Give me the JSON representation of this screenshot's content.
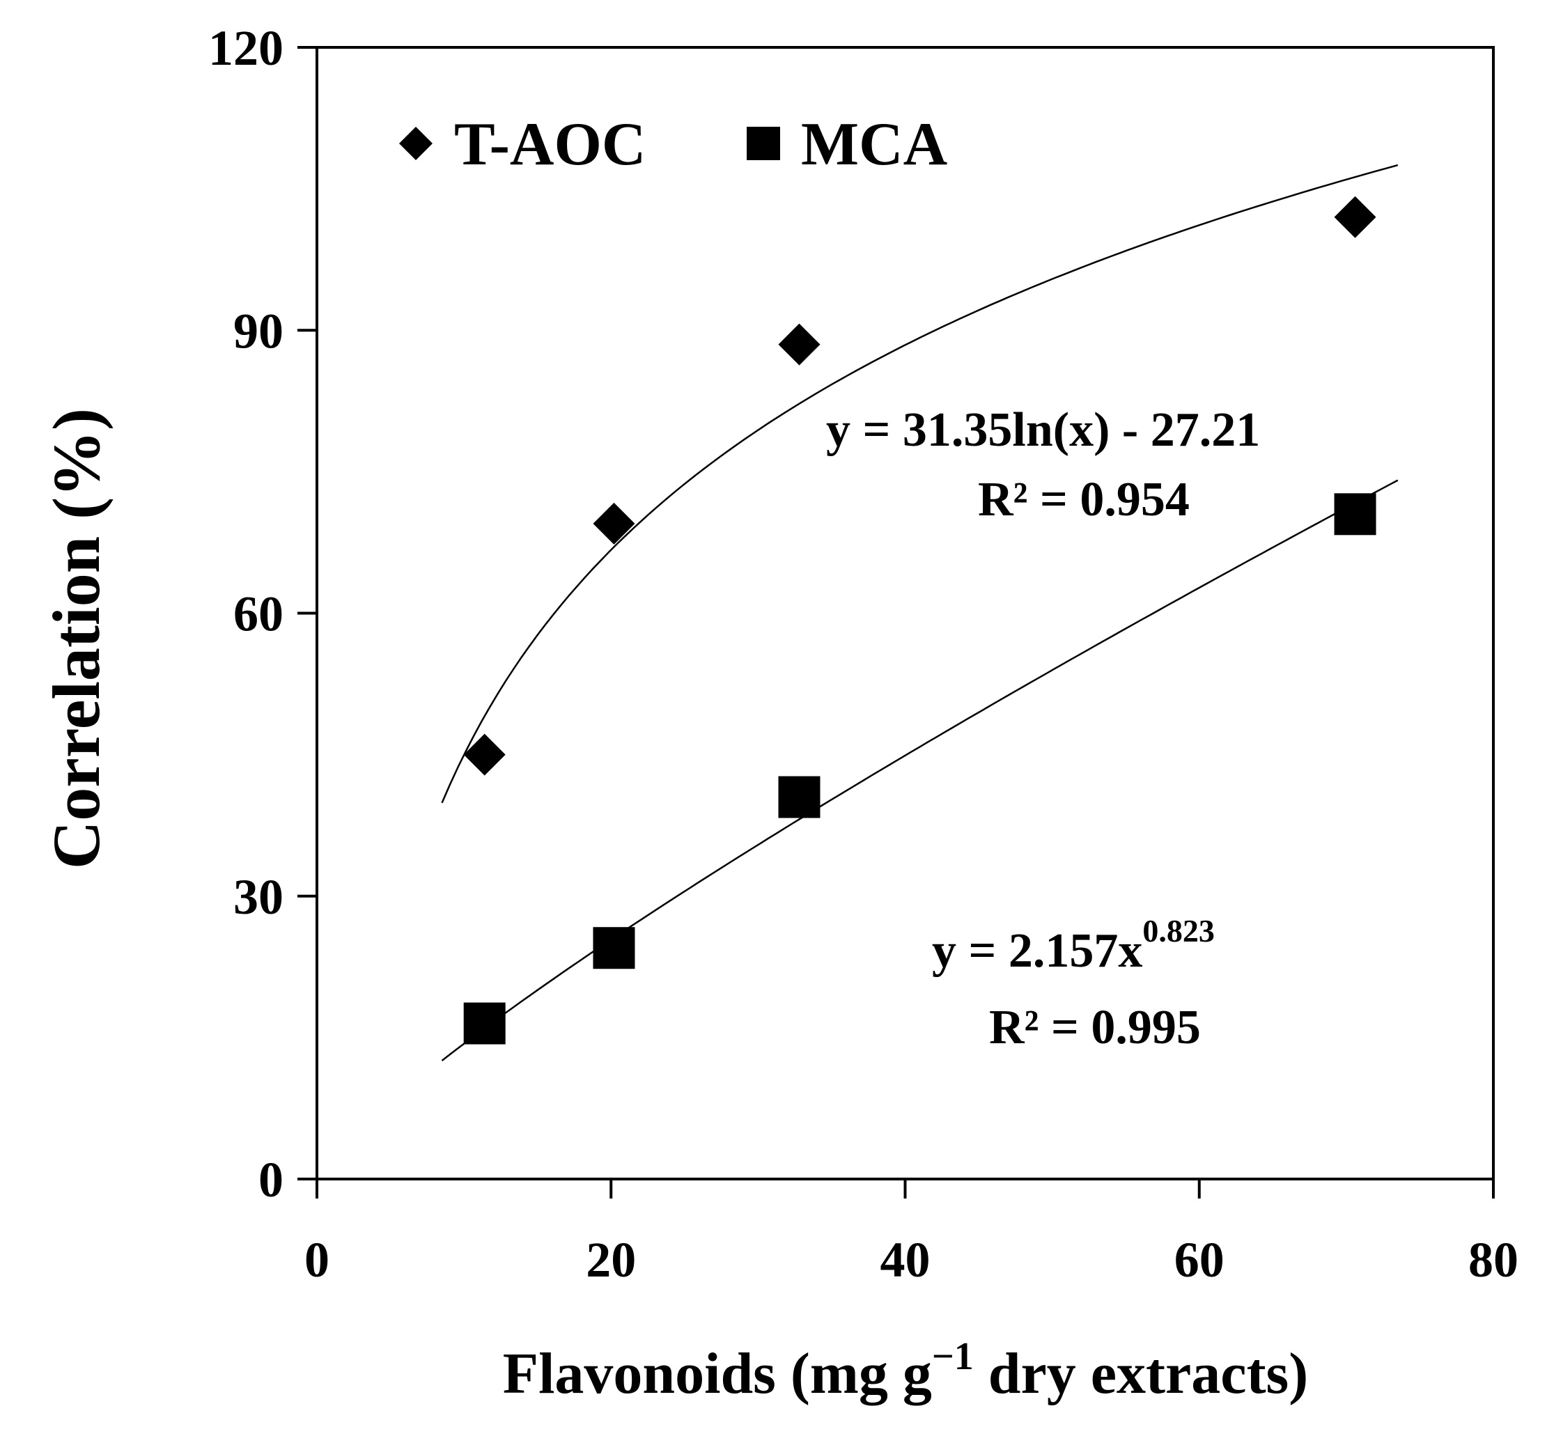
{
  "chart_data": {
    "type": "scatter",
    "title": "",
    "xlabel": "Flavonoids (mg g",
    "xlabel_sup": "−1",
    "xlabel_tail": " dry extracts)",
    "ylabel": "Correlation (%)",
    "xlim": [
      0,
      80
    ],
    "ylim": [
      0,
      120
    ],
    "x_ticks": [
      0,
      20,
      40,
      60,
      80
    ],
    "y_ticks": [
      0,
      30,
      60,
      90,
      120
    ],
    "x_tick_labels": [
      "0",
      "20",
      "40",
      "60",
      "80"
    ],
    "y_tick_labels": [
      "0",
      "30",
      "60",
      "90",
      "120"
    ],
    "grid": false,
    "legend_position": "top-left",
    "series": [
      {
        "name": "T-AOC",
        "marker": "diamond",
        "x": [
          11.4,
          20.2,
          32.8,
          70.6
        ],
        "y": [
          45,
          69.5,
          88.5,
          102
        ],
        "trendline": {
          "kind": "log",
          "a": 31.35,
          "b": -27.21,
          "x_range": [
            8.5,
            73.5
          ],
          "equation": "y = 31.35ln(x) - 27.21",
          "r2": "R² = 0.954"
        }
      },
      {
        "name": "MCA",
        "marker": "square",
        "x": [
          11.4,
          20.2,
          32.8,
          70.6
        ],
        "y": [
          16.5,
          24.5,
          40.5,
          70.5
        ],
        "trendline": {
          "kind": "power",
          "a": 2.157,
          "b": 0.823,
          "x_range": [
            8.5,
            73.5
          ],
          "equation_base": "y = 2.157x",
          "equation_exp": "0.823",
          "r2": "R² = 0.995"
        }
      }
    ]
  }
}
